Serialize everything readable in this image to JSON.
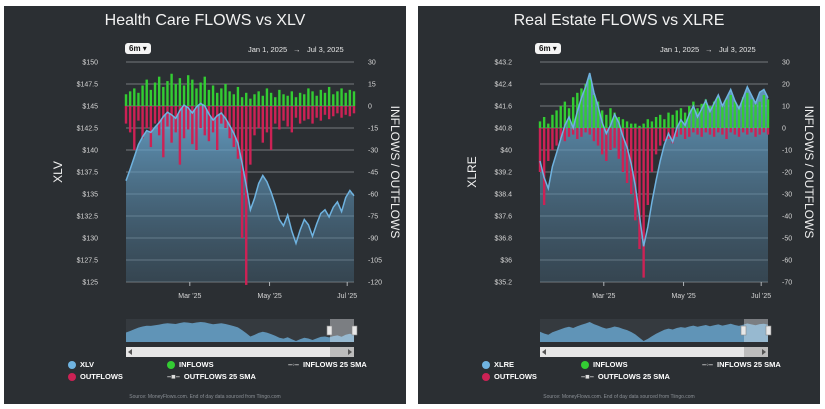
{
  "panels": [
    {
      "title": "Health Care FLOWS vs XLV",
      "range_button": "6m",
      "start_date": "Jan 1, 2025",
      "end_date": "Jul 3, 2025",
      "left_axis_label": "XLV",
      "right_axis_label": "INFLOWS / OUTFLOWS",
      "legend": {
        "price": "XLV",
        "inflows": "INFLOWS",
        "outflows": "OUTFLOWS",
        "inflows_sma": "INFLOWS 25 SMA",
        "outflows_sma": "OUTFLOWS 25 SMA"
      },
      "source": "Source: MoneyFlows.com. End of day data sourced from Tiingo.com",
      "colors": {
        "price": "#6fb3e0",
        "inflows": "#33cc33",
        "outflows": "#cc2255"
      }
    },
    {
      "title": "Real Estate FLOWS vs XLRE",
      "range_button": "6m",
      "start_date": "Jan 1, 2025",
      "end_date": "Jul 3, 2025",
      "left_axis_label": "XLRE",
      "right_axis_label": "INFLOWS / OUTFLOWS",
      "legend": {
        "price": "XLRE",
        "inflows": "INFLOWS",
        "outflows": "OUTFLOWS",
        "inflows_sma": "INFLOWS 25 SMA",
        "outflows_sma": "OUTFLOWS 25 SMA"
      },
      "source": "Source: MoneyFlows.com. End of day data sourced from Tiingo.com",
      "colors": {
        "price": "#6fb3e0",
        "inflows": "#33cc33",
        "outflows": "#cc2255"
      }
    }
  ],
  "chart_data": [
    {
      "type": "line",
      "series_label": "XLV",
      "x_ticks": [
        "Mar '25",
        "May '25",
        "Jul '25"
      ],
      "left_ticks": [
        "$150",
        "$147.5",
        "$145",
        "$142.5",
        "$140",
        "$137.5",
        "$135",
        "$132.5",
        "$130",
        "$127.5",
        "$125"
      ],
      "right_ticks": [
        "30",
        "15",
        "0",
        "-15",
        "-30",
        "-45",
        "-60",
        "-75",
        "-90",
        "-105",
        "-120"
      ],
      "ylim": [
        125,
        150
      ],
      "flow_lim": [
        -120,
        30
      ],
      "price": [
        136.5,
        137.8,
        139.2,
        140.6,
        141.5,
        142.2,
        142.0,
        142.6,
        143.1,
        143.8,
        144.3,
        144.0,
        143.6,
        144.5,
        145.1,
        144.8,
        144.2,
        144.9,
        145.3,
        145.0,
        144.1,
        143.4,
        143.9,
        144.2,
        143.6,
        142.8,
        141.9,
        140.8,
        138.5,
        136.0,
        133.2,
        134.5,
        136.2,
        137.1,
        136.4,
        135.2,
        133.8,
        132.1,
        131.4,
        132.6,
        130.8,
        129.4,
        130.9,
        132.1,
        131.5,
        130.2,
        131.6,
        132.8,
        133.2,
        132.4,
        133.5,
        134.1,
        133.0,
        134.6,
        135.4,
        134.8
      ],
      "inflows": [
        8,
        10,
        12,
        9,
        14,
        18,
        11,
        16,
        20,
        13,
        17,
        22,
        15,
        19,
        14,
        21,
        18,
        12,
        16,
        20,
        11,
        14,
        9,
        12,
        15,
        10,
        8,
        13,
        6,
        9,
        5,
        8,
        10,
        7,
        12,
        9,
        6,
        11,
        8,
        7,
        10,
        6,
        9,
        8,
        12,
        10,
        7,
        11,
        9,
        13,
        8,
        10,
        12,
        9,
        11,
        10
      ],
      "outflows": [
        -12,
        -18,
        -30,
        -10,
        -22,
        -15,
        -28,
        -12,
        -20,
        -35,
        -14,
        -25,
        -18,
        -40,
        -22,
        -16,
        -26,
        -30,
        -15,
        -20,
        -24,
        -18,
        -30,
        -12,
        -15,
        -22,
        -28,
        -36,
        -90,
        -122,
        -40,
        -20,
        -15,
        -25,
        -18,
        -30,
        -12,
        -16,
        -10,
        -14,
        -18,
        -8,
        -12,
        -10,
        -9,
        -12,
        -8,
        -10,
        -6,
        -9,
        -7,
        -5,
        -8,
        -6,
        -7,
        -5
      ]
    },
    {
      "type": "line",
      "series_label": "XLRE",
      "x_ticks": [
        "Mar '25",
        "May '25",
        "Jul '25"
      ],
      "left_ticks": [
        "$43.2",
        "$42.4",
        "$41.6",
        "$40.8",
        "$40",
        "$39.2",
        "$38.4",
        "$37.6",
        "$36.8",
        "$36",
        "$35.2"
      ],
      "right_ticks": [
        "30",
        "20",
        "10",
        "0",
        "-10",
        "-20",
        "-30",
        "-40",
        "-50",
        "-60",
        "-70"
      ],
      "ylim": [
        35.2,
        43.2
      ],
      "flow_lim": [
        -70,
        30
      ],
      "price": [
        39.6,
        39.0,
        38.6,
        39.4,
        39.9,
        40.4,
        40.9,
        41.2,
        40.8,
        41.4,
        41.9,
        42.3,
        42.8,
        42.1,
        41.6,
        41.0,
        40.6,
        40.9,
        41.3,
        41.0,
        40.5,
        40.1,
        39.5,
        38.7,
        37.6,
        36.5,
        37.2,
        38.1,
        38.9,
        39.6,
        40.2,
        40.6,
        40.3,
        40.8,
        41.1,
        40.9,
        41.3,
        41.6,
        41.2,
        41.5,
        41.8,
        41.4,
        41.7,
        42.0,
        41.6,
        41.9,
        42.2,
        41.8,
        41.5,
        41.9,
        42.3,
        42.0,
        41.7,
        42.1,
        42.2,
        41.9
      ],
      "inflows": [
        3,
        5,
        2,
        6,
        8,
        10,
        12,
        9,
        14,
        16,
        18,
        20,
        22,
        15,
        12,
        8,
        6,
        9,
        7,
        5,
        4,
        3,
        2,
        2,
        1,
        2,
        4,
        3,
        5,
        6,
        4,
        7,
        6,
        8,
        9,
        7,
        10,
        12,
        9,
        11,
        13,
        10,
        12,
        14,
        11,
        13,
        15,
        12,
        10,
        14,
        16,
        13,
        11,
        12,
        15,
        13
      ],
      "outflows": [
        -20,
        -35,
        -15,
        -10,
        -8,
        -5,
        -6,
        -4,
        -3,
        -5,
        -4,
        -2,
        -3,
        -6,
        -8,
        -12,
        -15,
        -10,
        -9,
        -14,
        -20,
        -25,
        -30,
        -42,
        -55,
        -68,
        -35,
        -20,
        -12,
        -8,
        -6,
        -5,
        -7,
        -4,
        -3,
        -5,
        -4,
        -2,
        -3,
        -4,
        -2,
        -3,
        -4,
        -2,
        -3,
        -5,
        -2,
        -3,
        -4,
        -2,
        -3,
        -2,
        -4,
        -3,
        -2,
        -3
      ]
    }
  ]
}
